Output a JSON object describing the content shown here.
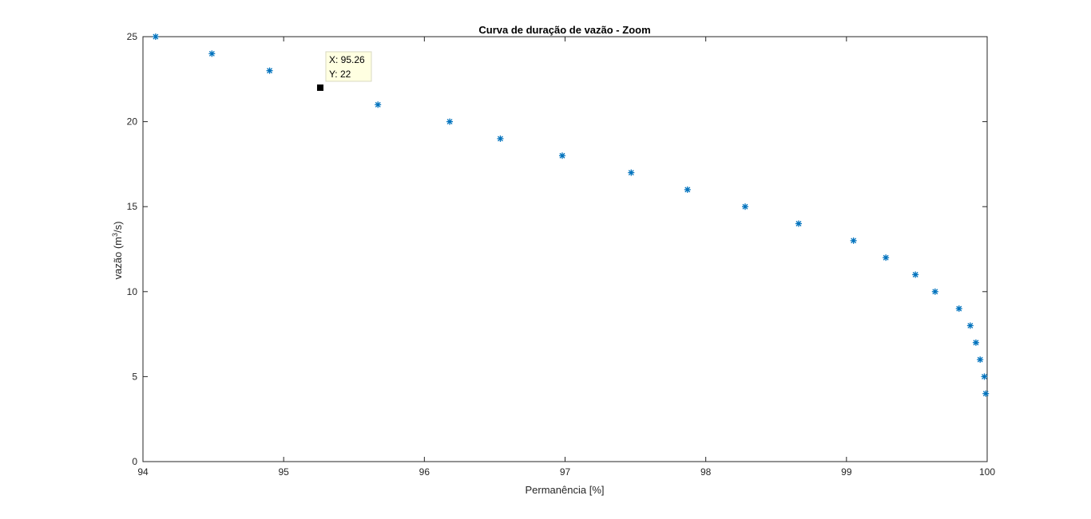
{
  "chart_data": {
    "type": "scatter",
    "title": "Curva de duração de vazão - Zoom",
    "xlabel": "Permanência [%]",
    "ylabel_main": "vazão (m",
    "ylabel_sup": "3",
    "ylabel_tail": "/s)",
    "xlim": [
      94,
      100
    ],
    "ylim": [
      0,
      25
    ],
    "xticks": [
      94,
      95,
      96,
      97,
      98,
      99,
      100
    ],
    "yticks": [
      0,
      5,
      10,
      15,
      20,
      25
    ],
    "grid": false,
    "marker": "*",
    "marker_color": "#0072BD",
    "series": [
      {
        "x": [
          94.09,
          94.49,
          94.9,
          95.67,
          96.18,
          96.54,
          96.98,
          97.47,
          97.87,
          98.28,
          98.66,
          99.05,
          99.28,
          99.49,
          99.63,
          99.8,
          99.88,
          99.92,
          99.95,
          99.98,
          99.99
        ],
        "y": [
          25,
          24,
          23,
          21,
          20,
          19,
          18,
          17,
          16,
          15,
          14,
          13,
          12,
          11,
          10,
          9,
          8,
          7,
          6,
          5,
          4
        ]
      }
    ],
    "datatip": {
      "x": 95.26,
      "y": 22,
      "x_text": "X: 95.26",
      "y_text": "Y: 22"
    }
  }
}
